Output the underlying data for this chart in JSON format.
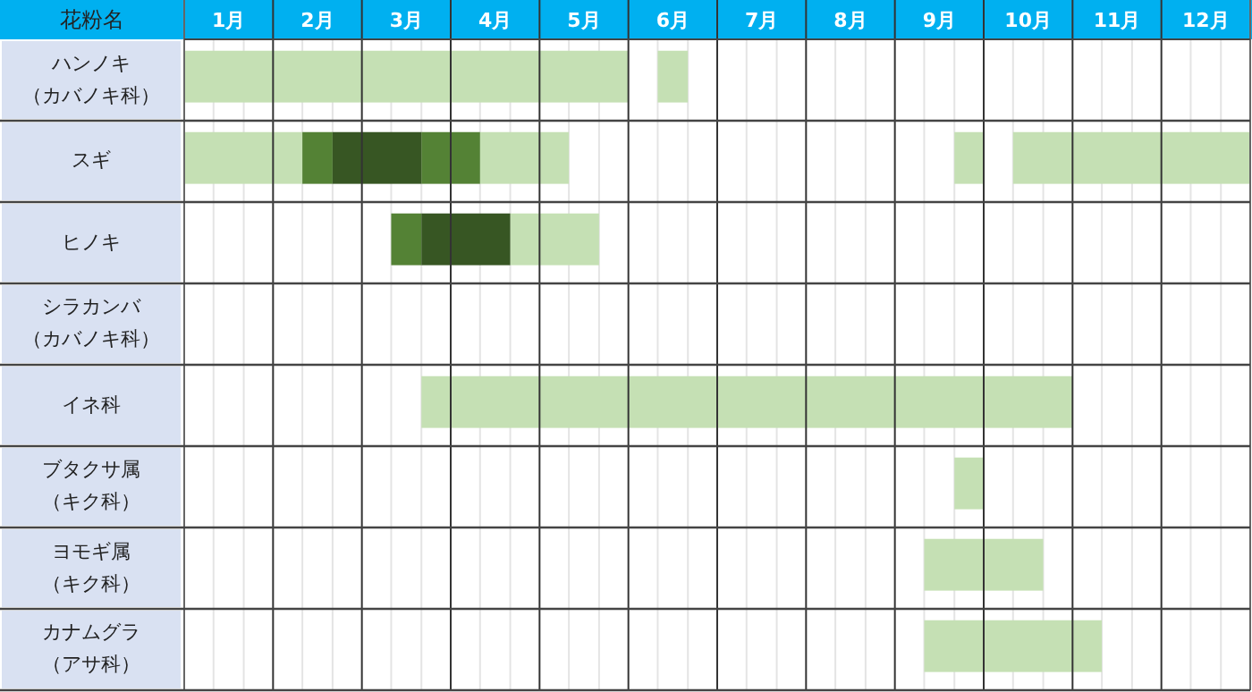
{
  "chart_data": {
    "type": "bar",
    "orientation": "horizontal",
    "ylabel": "花粉名",
    "categories": [
      "ハンノキ（カバノキ科）",
      "スギ",
      "ヒノキ",
      "シラカンバ（カバノキ科）",
      "イネ科",
      "ブタクサ属（キク科）",
      "ヨモギ属（キク科）",
      "カナムグラ（アサ科）"
    ],
    "xlim": [
      0,
      12
    ],
    "xticks": [
      {
        "value": 0,
        "label": null
      },
      {
        "value": 0.33,
        "label": null
      },
      {
        "value": 0.5,
        "label": "1月"
      },
      {
        "value": 0.67,
        "label": null
      },
      {
        "value": 1,
        "label": null
      },
      {
        "value": 1.33,
        "label": null
      },
      {
        "value": 1.5,
        "label": "2月"
      },
      {
        "value": 1.67,
        "label": null
      },
      {
        "value": 2,
        "label": null
      },
      {
        "value": 2.33,
        "label": null
      },
      {
        "value": 2.5,
        "label": "3月"
      },
      {
        "value": 2.67,
        "label": null
      },
      {
        "value": 3,
        "label": null
      },
      {
        "value": 3.33,
        "label": null
      },
      {
        "value": 3.5,
        "label": "4月"
      },
      {
        "value": 3.67,
        "label": null
      },
      {
        "value": 4,
        "label": null
      },
      {
        "value": 4.33,
        "label": null
      },
      {
        "value": 4.5,
        "label": "5月"
      },
      {
        "value": 4.67,
        "label": null
      },
      {
        "value": 5,
        "label": null
      },
      {
        "value": 5.33,
        "label": null
      },
      {
        "value": 5.5,
        "label": "6月"
      },
      {
        "value": 5.67,
        "label": null
      },
      {
        "value": 6,
        "label": null
      },
      {
        "value": 6.33,
        "label": null
      },
      {
        "value": 6.5,
        "label": "7月"
      },
      {
        "value": 6.67,
        "label": null
      },
      {
        "value": 7,
        "label": null
      },
      {
        "value": 7.33,
        "label": null
      },
      {
        "value": 7.5,
        "label": "8月"
      },
      {
        "value": 7.67,
        "label": null
      },
      {
        "value": 8,
        "label": null
      },
      {
        "value": 8.33,
        "label": null
      },
      {
        "value": 8.5,
        "label": "9月"
      },
      {
        "value": 8.67,
        "label": null
      },
      {
        "value": 9,
        "label": null
      },
      {
        "value": 9.33,
        "label": null
      },
      {
        "value": 9.5,
        "label": "10月"
      },
      {
        "value": 9.67,
        "label": null
      },
      {
        "value": 10,
        "label": null
      },
      {
        "value": 10.33,
        "label": null
      },
      {
        "value": 10.5,
        "label": "11月"
      },
      {
        "value": 10.67,
        "label": null
      },
      {
        "value": 11,
        "label": null
      },
      {
        "value": 11.33,
        "label": null
      },
      {
        "value": 11.5,
        "label": "12月"
      },
      {
        "value": 11.67,
        "label": null
      },
      {
        "value": 12,
        "label": null
      }
    ],
    "grid": "x",
    "series": [
      {
        "color": "#c5e0b4",
        "base": [
          0,
          0,
          null,
          null,
          2.67,
          8.67,
          8.33,
          8.33
        ],
        "values": [
          5,
          1.33,
          null,
          null,
          7.33,
          0.33,
          1.34,
          2
        ]
      },
      {
        "color": "#c5e0b4",
        "base": [
          5.33,
          3.33,
          3.67,
          null,
          null,
          null,
          null,
          null
        ],
        "values": [
          0.34,
          1,
          1,
          null,
          null,
          null,
          null,
          null
        ]
      },
      {
        "color": "#c5e0b4",
        "base": [
          null,
          8.67,
          null,
          null,
          null,
          null,
          null,
          null
        ],
        "values": [
          null,
          0.33,
          null,
          null,
          null,
          null,
          null,
          null
        ]
      },
      {
        "color": "#c5e0b4",
        "base": [
          null,
          9.33,
          null,
          null,
          null,
          null,
          null,
          null
        ],
        "values": [
          null,
          2.67,
          null,
          null,
          null,
          null,
          null,
          null
        ]
      },
      {
        "color": "#548235",
        "base": [
          null,
          1.33,
          2.33,
          null,
          null,
          null,
          null,
          null
        ],
        "values": [
          null,
          0.34,
          0.34,
          null,
          null,
          null,
          null,
          null
        ]
      },
      {
        "color": "#548235",
        "base": [
          null,
          2.67,
          null,
          null,
          null,
          null,
          null,
          null
        ],
        "values": [
          null,
          0.66,
          null,
          null,
          null,
          null,
          null,
          null
        ]
      },
      {
        "color": "#375623",
        "base": [
          null,
          1.67,
          2.67,
          null,
          null,
          null,
          null,
          null
        ],
        "values": [
          null,
          1,
          1,
          null,
          null,
          null,
          null,
          null
        ]
      }
    ]
  }
}
